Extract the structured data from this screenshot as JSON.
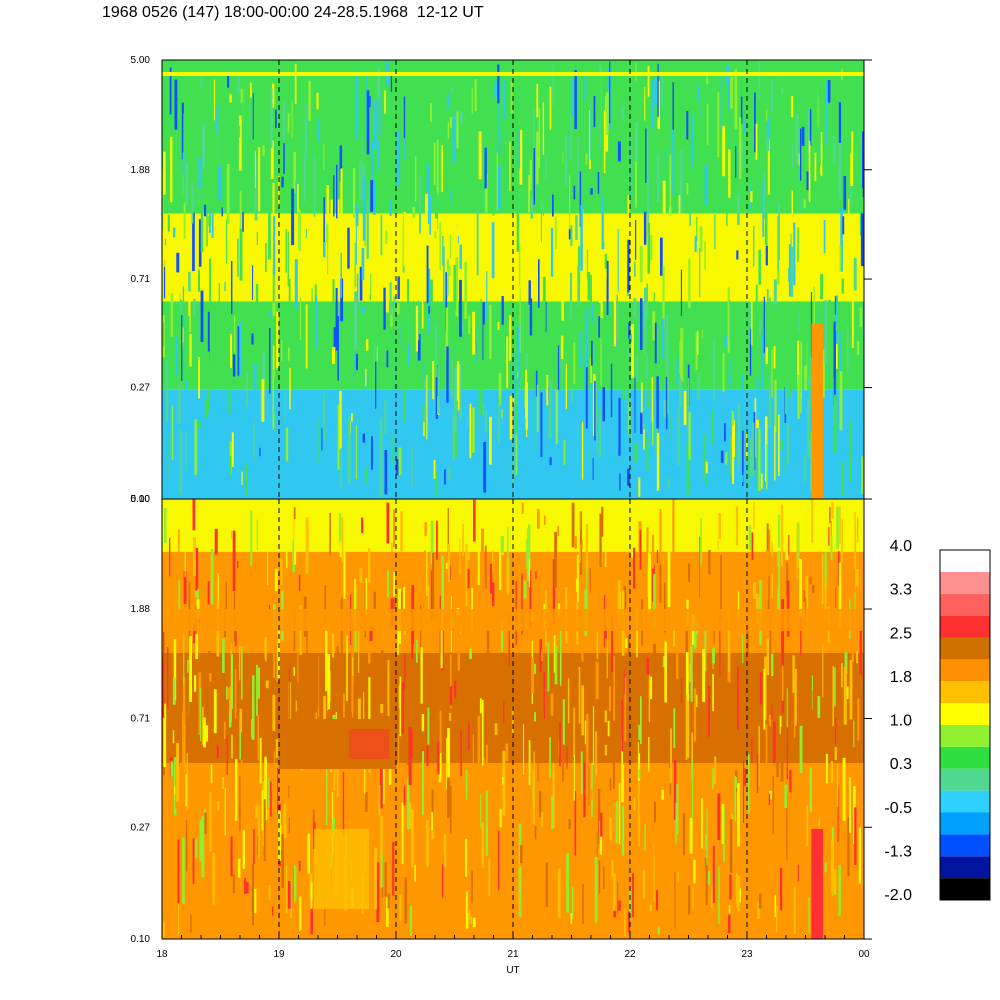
{
  "title": "1968 0526 (147) 18:00-00:00 24-28.5.1968  12-12 UT",
  "chart_data": [
    {
      "type": "heatmap",
      "panel": "top",
      "x_range": [
        18,
        24
      ],
      "y_tick_labels": [
        "5.00",
        "1.88",
        "0.71",
        "0.27",
        "0.10"
      ],
      "y_scale": "log",
      "dominant_levels": [
        "green",
        "cyan",
        "yellow"
      ],
      "vertical_dashed_lines_at": [
        19,
        20,
        21,
        22,
        23
      ],
      "highlight_band": {
        "x": [
          23.55,
          23.65
        ],
        "level": "orange"
      }
    },
    {
      "type": "heatmap",
      "panel": "bottom",
      "x_range": [
        18,
        24
      ],
      "x_tick_labels": [
        "18",
        "19",
        "20",
        "21",
        "22",
        "23",
        "00"
      ],
      "xlabel": "UT",
      "y_tick_labels": [
        "5.00",
        "1.88",
        "0.71",
        "0.27",
        "0.10"
      ],
      "y_scale": "log",
      "dominant_levels": [
        "orange",
        "yellow",
        "dark-orange"
      ],
      "vertical_dashed_lines_at": [
        19,
        20,
        21,
        22,
        23
      ],
      "highlight_band": {
        "x": [
          23.55,
          23.65
        ],
        "level": "red"
      }
    }
  ],
  "colorbar": {
    "labels": [
      "4.0",
      "3.3",
      "2.5",
      "1.8",
      "1.0",
      "0.3",
      "-0.5",
      "-1.3",
      "-2.0"
    ],
    "colors": [
      "#000000",
      "#0014a0",
      "#0050ff",
      "#00a0ff",
      "#30d0ff",
      "#50d890",
      "#30e040",
      "#90f030",
      "#ffff00",
      "#ffc000",
      "#ff9000",
      "#d07000",
      "#ff3030",
      "#ff6060",
      "#ff9090",
      "#ffffff"
    ]
  },
  "colors": {
    "green": "#40e050",
    "cyan": "#30c8f0",
    "yellow": "#f8f800",
    "orange": "#ff9800",
    "dark-orange": "#d87000",
    "red": "#ff3030",
    "blue": "#1050ff"
  }
}
